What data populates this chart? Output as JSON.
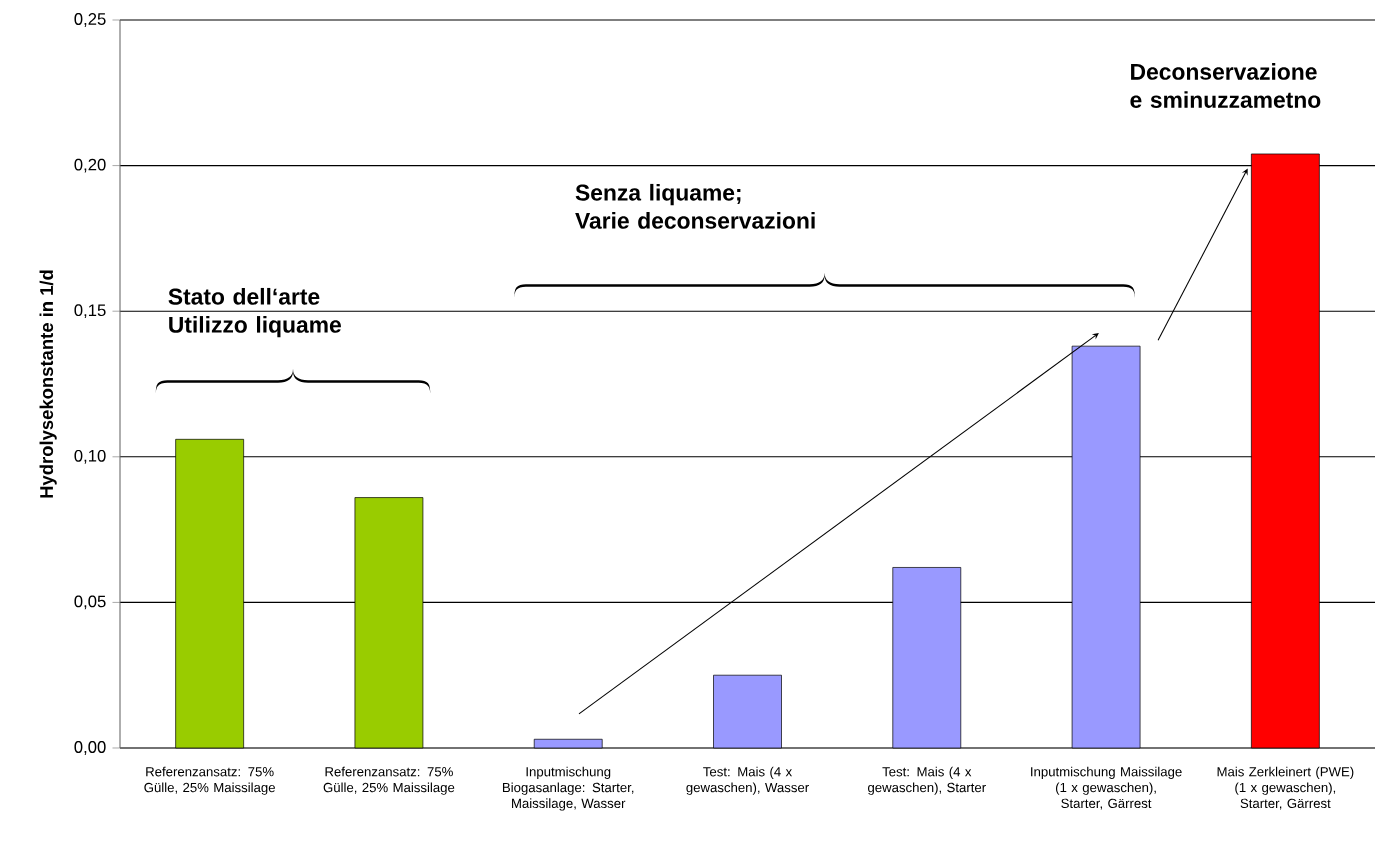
{
  "chart_data": {
    "type": "bar",
    "ylabel": "Hydrolysekonstante in 1/d",
    "categories": [
      "Referenzansatz: 75% Gülle, 25% Maissilage",
      "Referenzansatz: 75% Gülle, 25% Maissilage",
      "Inputmischung Biogasanlage: Starter, Maissilage, Wasser",
      "Test: Mais (4 x gewaschen), Wasser",
      "Test: Mais (4 x gewaschen), Starter",
      "Inputmischung Maissilage (1 x gewaschen), Starter, Gärrest",
      "Mais Zerkleinert (PWE) (1 x gewaschen), Starter, Gärrest"
    ],
    "values": [
      0.106,
      0.086,
      0.003,
      0.025,
      0.062,
      0.138,
      0.204
    ],
    "colors": [
      "#99cc00",
      "#99cc00",
      "#9999ff",
      "#9999ff",
      "#9999ff",
      "#9999ff",
      "#ff0000"
    ],
    "ylim": [
      0,
      0.25
    ],
    "yticks": [
      {
        "value": 0,
        "label": "0,00"
      },
      {
        "value": 0.05,
        "label": "0,05"
      },
      {
        "value": 0.1,
        "label": "0,10"
      },
      {
        "value": 0.15,
        "label": "0,15"
      },
      {
        "value": 0.2,
        "label": "0,20"
      },
      {
        "value": 0.25,
        "label": "0,25"
      }
    ],
    "grid": "y",
    "annotations": [
      "Stato dell‘arte\nUtilizzo liquame",
      "Senza liquame;\nVarie deconservazioni",
      "Deconservazione\ne sminuzzametno"
    ]
  }
}
